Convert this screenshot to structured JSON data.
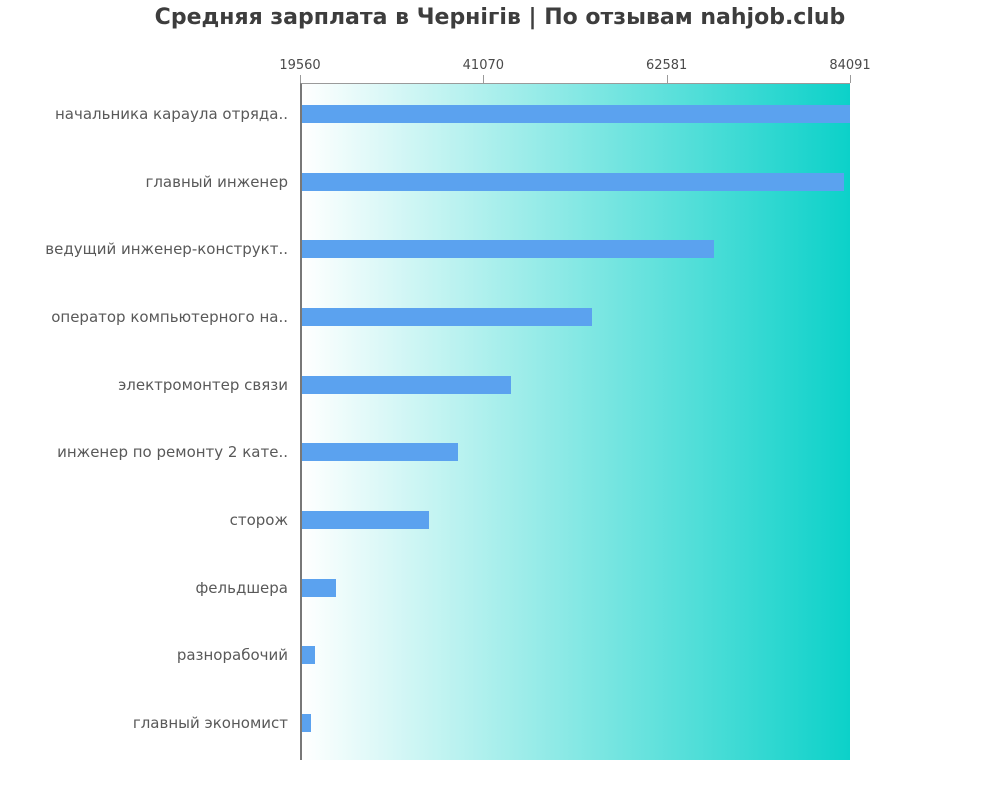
{
  "title": "Средняя зарплата в Чернігів | По отзывам nahjob.club",
  "chart_data": {
    "type": "bar",
    "orientation": "horizontal",
    "title": "Средняя зарплата в Чернігів | По отзывам nahjob.club",
    "categories": [
      "начальника караула отряда..",
      "главный инженер",
      "ведущий инженер-конструкт..",
      "оператор компьютерного на..",
      "электромонтер связи",
      "инженер по ремонту 2 кате..",
      "сторож",
      "фельдшера",
      "разнорабочий",
      "главный экономист"
    ],
    "values": [
      84091,
      83150,
      67900,
      53590,
      44080,
      37860,
      34460,
      23550,
      21090,
      20620
    ],
    "xlabel": "",
    "ylabel": "",
    "axis": {
      "min": 19560,
      "max": 84091,
      "ticks": [
        19560,
        41070,
        62581,
        84091
      ],
      "tick_position": "top"
    },
    "grid": false,
    "legend": null,
    "colors": {
      "bar": "#5ba2ef",
      "plot_bg_gradient_left": "#ffffff",
      "plot_bg_gradient_right": "#0cd1c9",
      "axis_line": "#787878",
      "tick_text": "#4a4a4a",
      "label_text": "#595959",
      "title_text": "#3d3d3d"
    }
  }
}
